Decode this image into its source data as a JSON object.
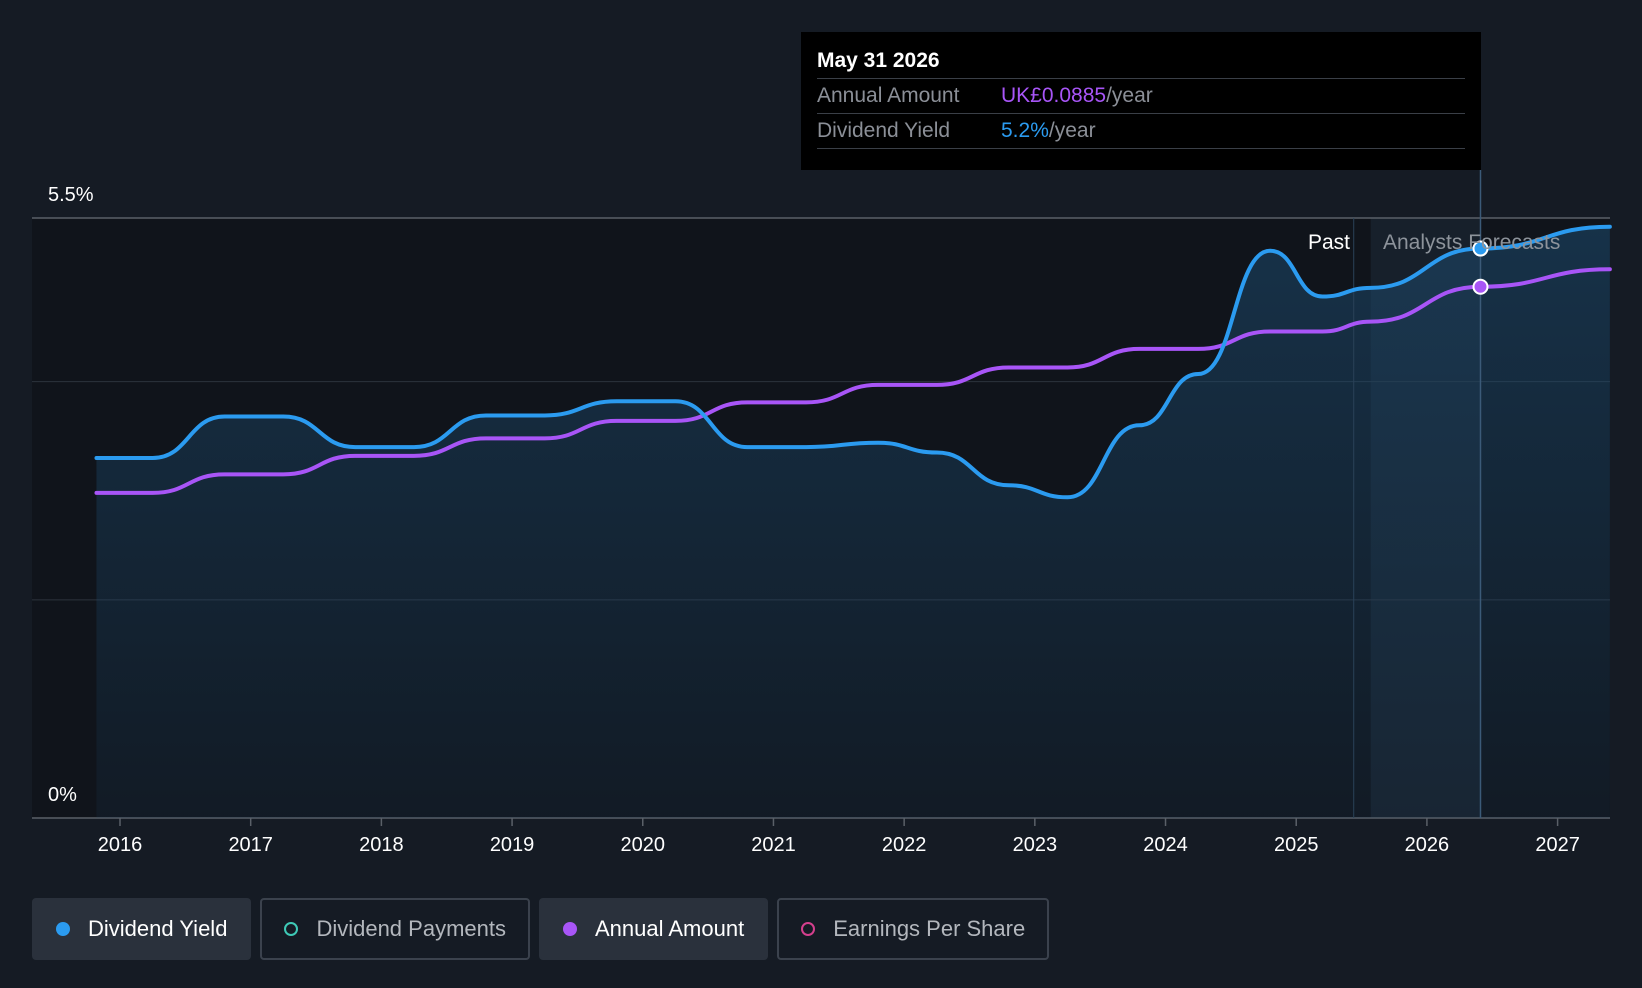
{
  "tooltip": {
    "date": "May 31 2026",
    "annual_amount_label": "Annual Amount",
    "annual_amount_value": "UK£0.0885",
    "annual_amount_suffix": "/year",
    "dividend_yield_label": "Dividend Yield",
    "dividend_yield_value": "5.2%",
    "dividend_yield_suffix": "/year"
  },
  "legend": [
    {
      "label": "Dividend Yield",
      "color": "#2b9bf0",
      "active": true
    },
    {
      "label": "Dividend Payments",
      "color": "#3ec9b6",
      "active": false
    },
    {
      "label": "Annual Amount",
      "color": "#a855f7",
      "active": true
    },
    {
      "label": "Earnings Per Share",
      "color": "#d43f8d",
      "active": false
    }
  ],
  "chart_data": {
    "type": "line",
    "y_axis_labels": [
      "5.5%",
      "0%"
    ],
    "ylim": [
      0,
      5.5
    ],
    "x_ticks": [
      "2016",
      "2017",
      "2018",
      "2019",
      "2020",
      "2021",
      "2022",
      "2023",
      "2024",
      "2025",
      "2026",
      "2027"
    ],
    "regions": {
      "past_label": "Past",
      "forecast_label": "Analysts Forecasts",
      "forecast_start": 2025.57
    },
    "highlight_x": 2026.41,
    "series": [
      {
        "name": "Dividend Yield",
        "color": "#2b9bf0",
        "points": [
          [
            2015.82,
            3.3
          ],
          [
            2016.25,
            3.3
          ],
          [
            2016.8,
            3.68
          ],
          [
            2017.25,
            3.68
          ],
          [
            2017.8,
            3.4
          ],
          [
            2018.25,
            3.4
          ],
          [
            2018.8,
            3.69
          ],
          [
            2019.25,
            3.69
          ],
          [
            2019.8,
            3.82
          ],
          [
            2020.25,
            3.82
          ],
          [
            2020.8,
            3.4
          ],
          [
            2021.25,
            3.4
          ],
          [
            2021.8,
            3.44
          ],
          [
            2022.25,
            3.35
          ],
          [
            2022.8,
            3.05
          ],
          [
            2023.25,
            2.94
          ],
          [
            2023.8,
            3.6
          ],
          [
            2024.25,
            4.07
          ],
          [
            2024.8,
            5.2
          ],
          [
            2025.2,
            4.78
          ],
          [
            2025.57,
            4.86
          ],
          [
            2026.41,
            5.22
          ],
          [
            2027.4,
            5.42
          ]
        ]
      },
      {
        "name": "Annual Amount",
        "color": "#a855f7",
        "points": [
          [
            2015.82,
            2.98
          ],
          [
            2016.25,
            2.98
          ],
          [
            2016.8,
            3.15
          ],
          [
            2017.25,
            3.15
          ],
          [
            2017.8,
            3.32
          ],
          [
            2018.25,
            3.32
          ],
          [
            2018.8,
            3.48
          ],
          [
            2019.25,
            3.48
          ],
          [
            2019.8,
            3.64
          ],
          [
            2020.25,
            3.64
          ],
          [
            2020.8,
            3.81
          ],
          [
            2021.25,
            3.81
          ],
          [
            2021.8,
            3.97
          ],
          [
            2022.25,
            3.97
          ],
          [
            2022.8,
            4.13
          ],
          [
            2023.25,
            4.13
          ],
          [
            2023.8,
            4.3
          ],
          [
            2024.25,
            4.3
          ],
          [
            2024.8,
            4.46
          ],
          [
            2025.2,
            4.46
          ],
          [
            2025.57,
            4.55
          ],
          [
            2026.41,
            4.87
          ],
          [
            2027.4,
            5.03
          ]
        ]
      }
    ]
  }
}
